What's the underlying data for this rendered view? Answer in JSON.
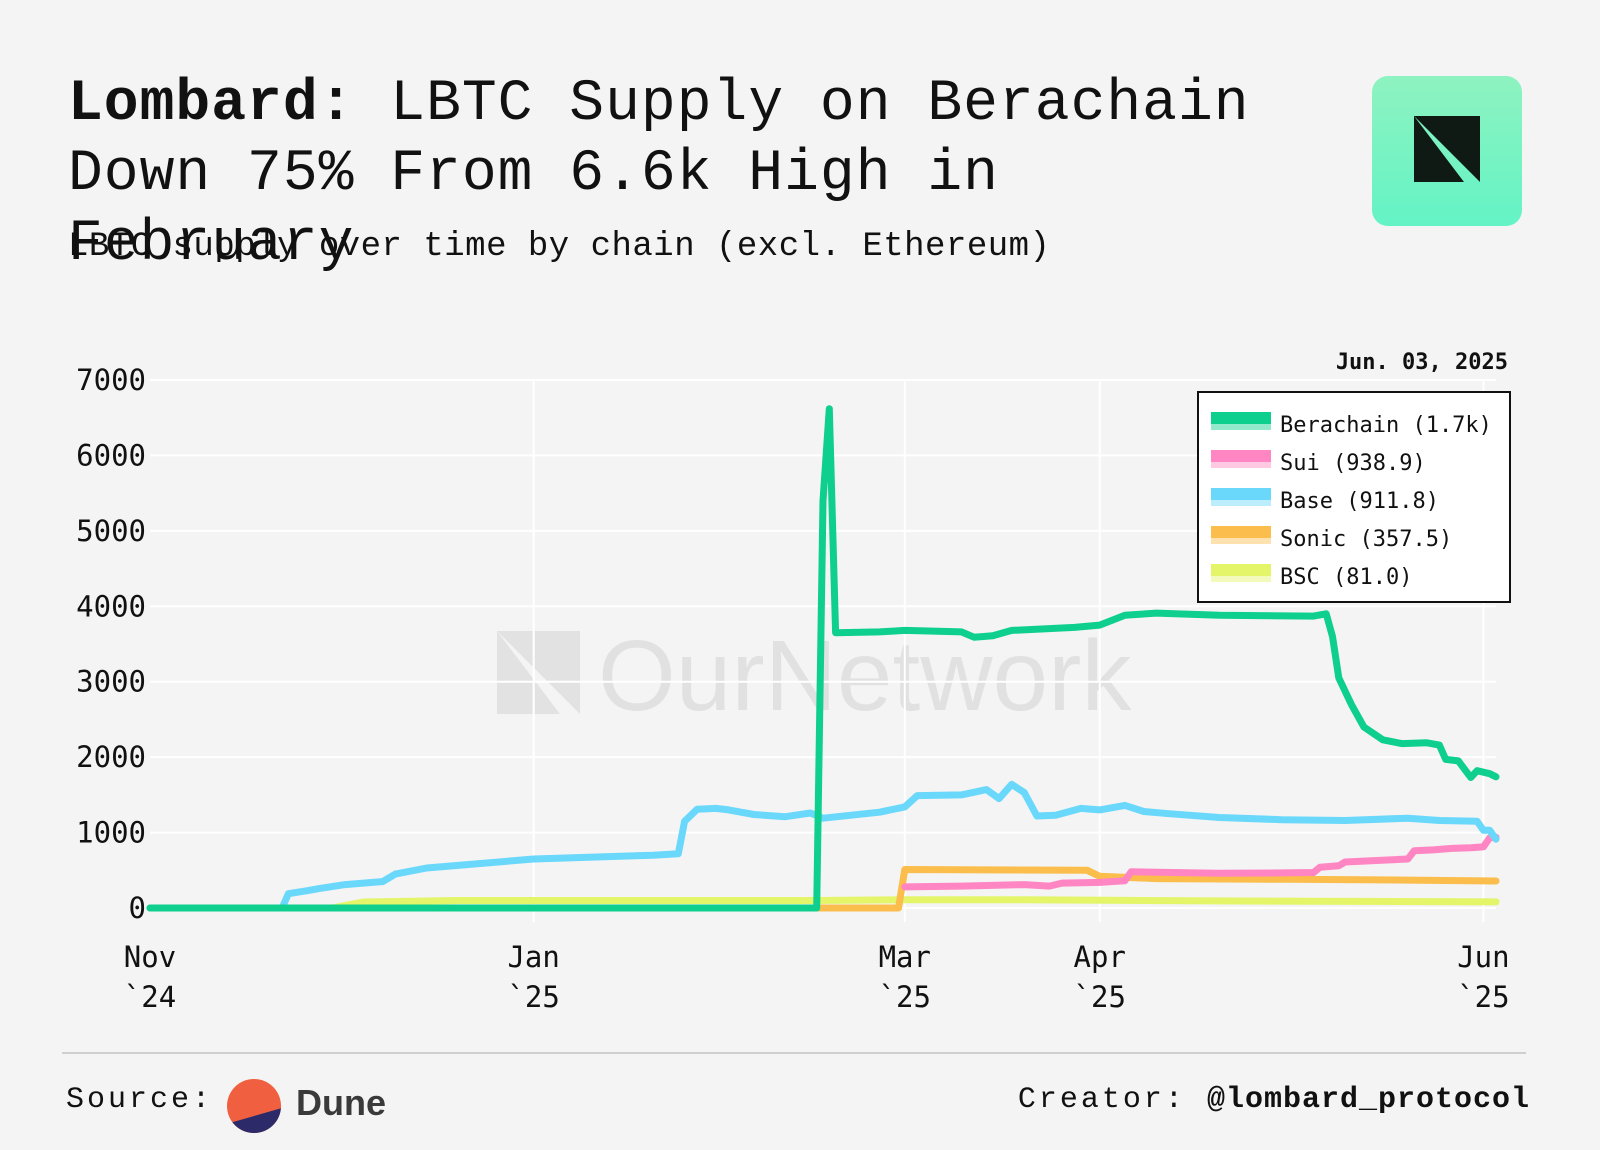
{
  "header": {
    "title_brand": "Lombard:",
    "title_rest": " LBTC Supply on Berachain Down 75% From 6.6k High in February",
    "subtitle": "LBTC supply over time by chain (excl. Ethereum)",
    "logo_icon": "ournetwork-logo-icon"
  },
  "footer": {
    "source_label": "Source:",
    "source_name": "Dune",
    "creator_label": "Creator:",
    "creator_handle": "@lombard_protocol"
  },
  "chart_data": {
    "type": "line",
    "title": "Lombard: LBTC Supply on Berachain Down 75% From 6.6k High in February",
    "subtitle": "LBTC supply over time by chain (excl. Ethereum)",
    "date_label": "Jun. 03, 2025",
    "watermark": "OurNetwork",
    "xlabel": "",
    "ylabel": "",
    "xlim": [
      "2024-11-01",
      "2025-06-03"
    ],
    "ylim": [
      0,
      7000
    ],
    "yticks": [
      "0",
      "1000",
      "2000",
      "3000",
      "4000",
      "5000",
      "6000",
      "7000"
    ],
    "xticks": [
      {
        "date": "2024-11-01",
        "line1": "Nov",
        "line2": "`24"
      },
      {
        "date": "2025-01-01",
        "line1": "Jan",
        "line2": "`25"
      },
      {
        "date": "2025-03-01",
        "line1": "Mar",
        "line2": "`25"
      },
      {
        "date": "2025-04-01",
        "line1": "Apr",
        "line2": "`25"
      },
      {
        "date": "2025-06-01",
        "line1": "Jun",
        "line2": "`25"
      }
    ],
    "grid": true,
    "legend_position": "top-right",
    "series": [
      {
        "name": "BSC",
        "legend": "BSC (81.0)",
        "color": "#e4f56a",
        "points": [
          [
            "2024-11-01",
            0
          ],
          [
            "2024-11-30",
            0
          ],
          [
            "2024-12-05",
            80
          ],
          [
            "2024-12-20",
            100
          ],
          [
            "2025-02-15",
            100
          ],
          [
            "2025-03-01",
            110
          ],
          [
            "2025-03-20",
            110
          ],
          [
            "2025-04-15",
            95
          ],
          [
            "2025-06-03",
            81
          ]
        ]
      },
      {
        "name": "Sonic",
        "legend": "Sonic (357.5)",
        "color": "#fbbd4b",
        "points": [
          [
            "2024-11-01",
            0
          ],
          [
            "2025-02-28",
            0
          ],
          [
            "2025-03-01",
            510
          ],
          [
            "2025-03-30",
            500
          ],
          [
            "2025-04-01",
            420
          ],
          [
            "2025-04-10",
            390
          ],
          [
            "2025-05-01",
            380
          ],
          [
            "2025-05-20",
            370
          ],
          [
            "2025-06-03",
            357.5
          ]
        ]
      },
      {
        "name": "Sui",
        "legend": "Sui (938.9)",
        "color": "#ff86c2",
        "points": [
          [
            "2025-03-01",
            280
          ],
          [
            "2025-03-10",
            290
          ],
          [
            "2025-03-20",
            310
          ],
          [
            "2025-03-24",
            290
          ],
          [
            "2025-03-26",
            330
          ],
          [
            "2025-04-01",
            340
          ],
          [
            "2025-04-05",
            360
          ],
          [
            "2025-04-06",
            480
          ],
          [
            "2025-04-10",
            475
          ],
          [
            "2025-04-20",
            460
          ],
          [
            "2025-04-30",
            465
          ],
          [
            "2025-05-05",
            470
          ],
          [
            "2025-05-06",
            540
          ],
          [
            "2025-05-09",
            560
          ],
          [
            "2025-05-10",
            610
          ],
          [
            "2025-05-15",
            630
          ],
          [
            "2025-05-20",
            650
          ],
          [
            "2025-05-21",
            760
          ],
          [
            "2025-05-24",
            770
          ],
          [
            "2025-05-27",
            790
          ],
          [
            "2025-05-30",
            800
          ],
          [
            "2025-06-01",
            810
          ],
          [
            "2025-06-02",
            930
          ],
          [
            "2025-06-03",
            938.9
          ]
        ]
      },
      {
        "name": "Base",
        "legend": "Base (911.8)",
        "color": "#6ad8fb",
        "points": [
          [
            "2024-11-01",
            0
          ],
          [
            "2024-11-22",
            0
          ],
          [
            "2024-11-23",
            190
          ],
          [
            "2024-11-26",
            230
          ],
          [
            "2024-11-28",
            260
          ],
          [
            "2024-12-02",
            310
          ],
          [
            "2024-12-08",
            350
          ],
          [
            "2024-12-10",
            450
          ],
          [
            "2024-12-15",
            530
          ],
          [
            "2025-01-01",
            650
          ],
          [
            "2025-01-20",
            700
          ],
          [
            "2025-01-24",
            720
          ],
          [
            "2025-01-25",
            1150
          ],
          [
            "2025-01-27",
            1310
          ],
          [
            "2025-01-30",
            1320
          ],
          [
            "2025-02-01",
            1300
          ],
          [
            "2025-02-05",
            1240
          ],
          [
            "2025-02-10",
            1210
          ],
          [
            "2025-02-14",
            1260
          ],
          [
            "2025-02-16",
            1190
          ],
          [
            "2025-02-25",
            1270
          ],
          [
            "2025-03-01",
            1340
          ],
          [
            "2025-03-03",
            1490
          ],
          [
            "2025-03-10",
            1500
          ],
          [
            "2025-03-14",
            1570
          ],
          [
            "2025-03-16",
            1450
          ],
          [
            "2025-03-18",
            1640
          ],
          [
            "2025-03-20",
            1530
          ],
          [
            "2025-03-22",
            1220
          ],
          [
            "2025-03-25",
            1230
          ],
          [
            "2025-03-29",
            1320
          ],
          [
            "2025-04-01",
            1300
          ],
          [
            "2025-04-05",
            1360
          ],
          [
            "2025-04-08",
            1280
          ],
          [
            "2025-04-12",
            1250
          ],
          [
            "2025-04-20",
            1200
          ],
          [
            "2025-04-30",
            1170
          ],
          [
            "2025-05-10",
            1160
          ],
          [
            "2025-05-20",
            1190
          ],
          [
            "2025-05-25",
            1160
          ],
          [
            "2025-05-31",
            1150
          ],
          [
            "2025-06-01",
            1030
          ],
          [
            "2025-06-02",
            1030
          ],
          [
            "2025-06-03",
            911.8
          ]
        ]
      },
      {
        "name": "Berachain",
        "legend": "Berachain (1.7k)",
        "color": "#0ecf8e",
        "points": [
          [
            "2024-11-01",
            0
          ],
          [
            "2025-02-15",
            0
          ],
          [
            "2025-02-16",
            5400
          ],
          [
            "2025-02-17",
            6620
          ],
          [
            "2025-02-18",
            3650
          ],
          [
            "2025-02-25",
            3660
          ],
          [
            "2025-03-01",
            3680
          ],
          [
            "2025-03-10",
            3660
          ],
          [
            "2025-03-12",
            3590
          ],
          [
            "2025-03-15",
            3610
          ],
          [
            "2025-03-18",
            3680
          ],
          [
            "2025-03-28",
            3720
          ],
          [
            "2025-04-01",
            3750
          ],
          [
            "2025-04-05",
            3880
          ],
          [
            "2025-04-10",
            3910
          ],
          [
            "2025-04-20",
            3880
          ],
          [
            "2025-05-05",
            3870
          ],
          [
            "2025-05-07",
            3900
          ],
          [
            "2025-05-08",
            3600
          ],
          [
            "2025-05-09",
            3050
          ],
          [
            "2025-05-11",
            2700
          ],
          [
            "2025-05-13",
            2400
          ],
          [
            "2025-05-16",
            2230
          ],
          [
            "2025-05-19",
            2180
          ],
          [
            "2025-05-23",
            2190
          ],
          [
            "2025-05-25",
            2160
          ],
          [
            "2025-05-26",
            1970
          ],
          [
            "2025-05-28",
            1950
          ],
          [
            "2025-05-30",
            1730
          ],
          [
            "2025-05-31",
            1820
          ],
          [
            "2025-06-02",
            1780
          ],
          [
            "2025-06-03",
            1740
          ]
        ]
      }
    ],
    "legend_order": [
      "Berachain",
      "Sui",
      "Base",
      "Sonic",
      "BSC"
    ]
  }
}
